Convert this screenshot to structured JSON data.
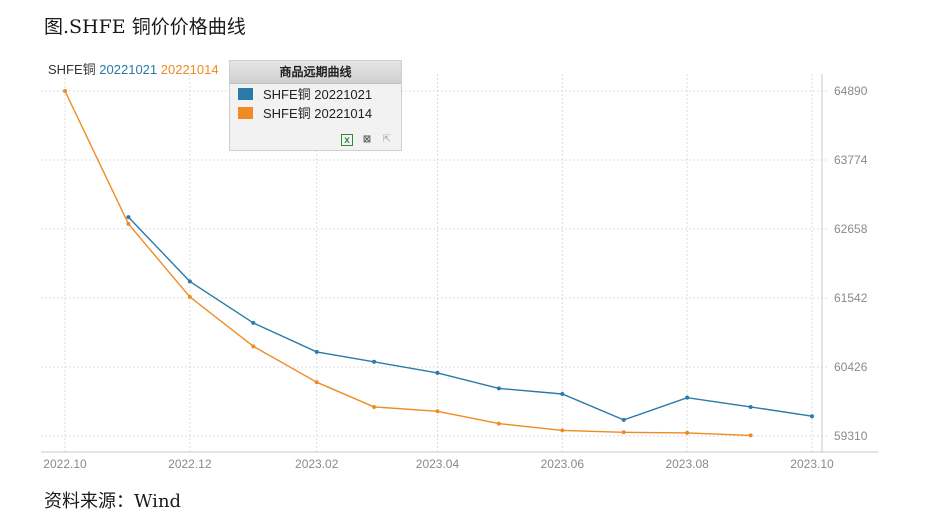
{
  "figure_title": "图.SHFE 铜价价格曲线",
  "source_text": "资料来源：Wind",
  "series_header": {
    "base": "SHFE铜",
    "a": "20221021",
    "b": "20221014"
  },
  "legend": {
    "title": "商品远期曲线",
    "items": [
      "SHFE铜 20221021",
      "SHFE铜 20221014"
    ],
    "tools": [
      "excel-export",
      "edit",
      "expand"
    ]
  },
  "colors": {
    "series_a": "#2a7ba7",
    "series_b": "#ee8c22",
    "grid": "#dcdcdc",
    "axis": "#c8c8c8"
  },
  "chart_data": {
    "type": "line",
    "title": "",
    "xlabel": "",
    "ylabel": "",
    "x_ticks": [
      "2022.10",
      "2022.12",
      "2023.02",
      "2023.04",
      "2023.06",
      "2023.08",
      "2023.10"
    ],
    "x_tick_dates": [
      "2022-10-01",
      "2022-12-01",
      "2023-02-01",
      "2023-04-01",
      "2023-06-01",
      "2023-08-01",
      "2023-10-01"
    ],
    "y_ticks": [
      64890,
      63774,
      62658,
      61542,
      60426,
      59310
    ],
    "ylim": [
      59050,
      65100
    ],
    "y_axis_side": "right",
    "grid": true,
    "legend_position": "top-left",
    "series": [
      {
        "name": "SHFE铜 20221021",
        "color": "#2a7ba7",
        "points": [
          [
            "2022-11-01",
            62850
          ],
          [
            "2022-12-01",
            61810
          ],
          [
            "2023-01-01",
            61140
          ],
          [
            "2023-02-01",
            60670
          ],
          [
            "2023-03-01",
            60510
          ],
          [
            "2023-04-01",
            60330
          ],
          [
            "2023-05-01",
            60080
          ],
          [
            "2023-06-01",
            59990
          ],
          [
            "2023-07-01",
            59570
          ],
          [
            "2023-08-01",
            59930
          ],
          [
            "2023-09-01",
            59780
          ],
          [
            "2023-10-01",
            59630
          ]
        ]
      },
      {
        "name": "SHFE铜 20221014",
        "color": "#ee8c22",
        "points": [
          [
            "2022-10-01",
            64890
          ],
          [
            "2022-11-01",
            62740
          ],
          [
            "2022-12-01",
            61560
          ],
          [
            "2023-01-01",
            60760
          ],
          [
            "2023-02-01",
            60180
          ],
          [
            "2023-03-01",
            59780
          ],
          [
            "2023-04-01",
            59710
          ],
          [
            "2023-05-01",
            59510
          ],
          [
            "2023-06-01",
            59400
          ],
          [
            "2023-07-01",
            59370
          ],
          [
            "2023-08-01",
            59360
          ],
          [
            "2023-09-01",
            59320
          ]
        ]
      }
    ]
  }
}
